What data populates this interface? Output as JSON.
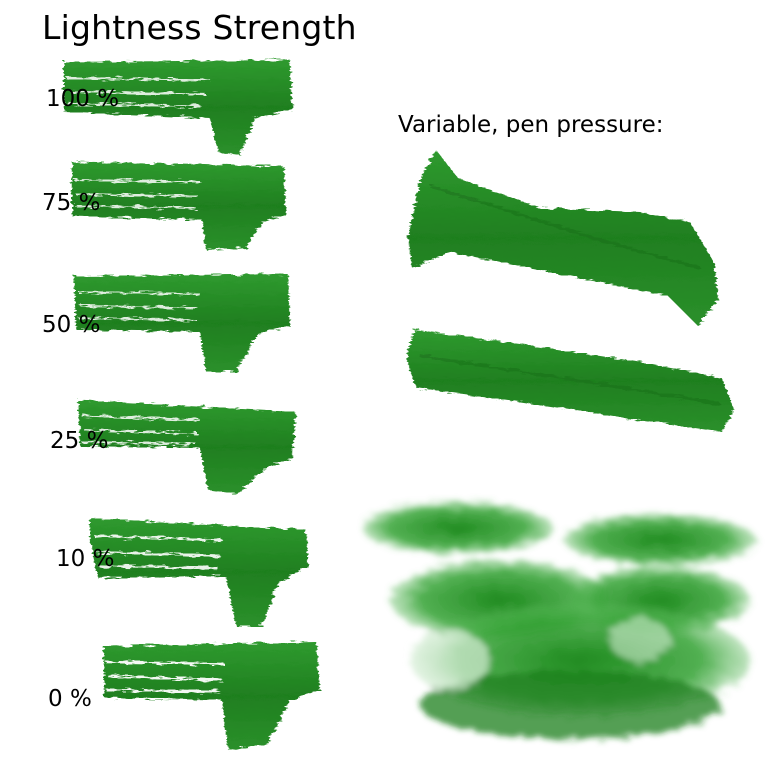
{
  "title": "Lightness Strength",
  "subtitle": "Variable, pen pressure:",
  "samples": [
    {
      "label": "100 %",
      "lightness_strength_percent": 100
    },
    {
      "label": "75 %",
      "lightness_strength_percent": 75
    },
    {
      "label": "50 %",
      "lightness_strength_percent": 50
    },
    {
      "label": "25 %",
      "lightness_strength_percent": 25
    },
    {
      "label": "10 %",
      "lightness_strength_percent": 10
    },
    {
      "label": "0 %",
      "lightness_strength_percent": 0
    }
  ],
  "colors": {
    "stroke_dark": "#1e7a1e",
    "stroke_mid": "#2a922a",
    "stroke_light": "#3aa83a",
    "background": "#ffffff"
  }
}
